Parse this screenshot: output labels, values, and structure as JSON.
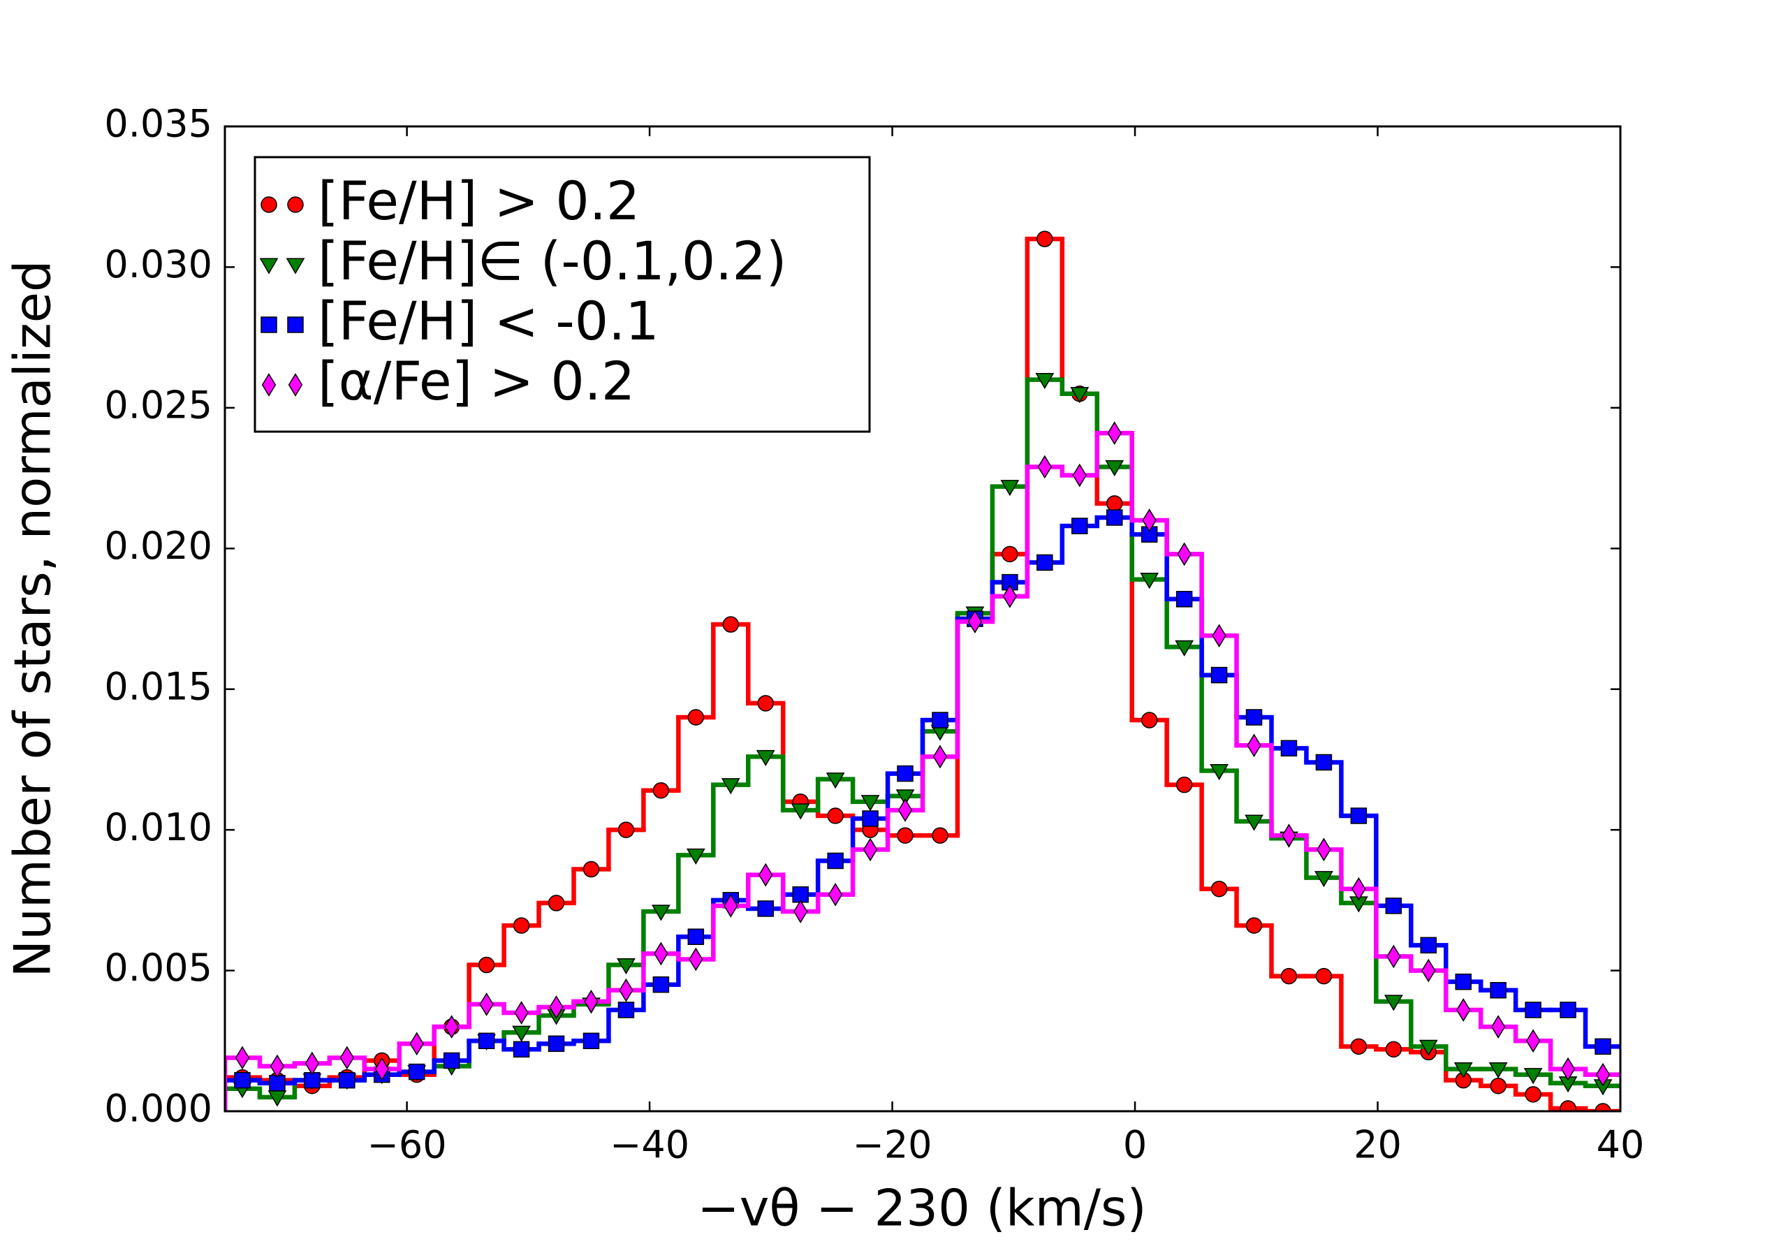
{
  "chart_data": {
    "type": "histogram",
    "xlabel": "−vθ − 230 (km/s)",
    "ylabel": "Number of stars, normalized",
    "bins": [
      -75,
      -72.125,
      -69.25,
      -66.375,
      -63.5,
      -60.625,
      -57.75,
      -54.875,
      -52,
      -49.125,
      -46.25,
      -43.375,
      -40.5,
      -37.625,
      -34.75,
      -31.875,
      -29,
      -26.125,
      -23.25,
      -20.375,
      -17.5,
      -14.625,
      -11.75,
      -8.875,
      -6,
      -3.125,
      -0.25,
      2.625,
      5.5,
      8.375,
      11.25,
      14.125,
      17,
      19.875,
      22.75,
      25.625,
      28.5,
      31.375,
      34.25,
      37.125,
      40
    ],
    "series": [
      {
        "name": "[Fe/H] > 0.2",
        "color": "#ff0000",
        "marker": "circle",
        "values": [
          0.0012,
          0.0011,
          0.0009,
          0.0012,
          0.0018,
          0.0013,
          0.003,
          0.0052,
          0.0066,
          0.0074,
          0.0086,
          0.01,
          0.0114,
          0.014,
          0.0173,
          0.0145,
          0.011,
          0.0105,
          0.01,
          0.0098,
          0.0098,
          0.0175,
          0.0198,
          0.031,
          0.0255,
          0.0216,
          0.0139,
          0.0116,
          0.0079,
          0.0066,
          0.0048,
          0.0048,
          0.0023,
          0.0022,
          0.0021,
          0.0011,
          0.0009,
          0.0006,
          0.0001,
          0.0
        ]
      },
      {
        "name": "[Fe/H]∈ (-0.1,0.2)",
        "color": "#008000",
        "marker": "triangle-down",
        "values": [
          0.0008,
          0.0005,
          0.0011,
          0.0011,
          0.0013,
          0.0014,
          0.0016,
          0.0025,
          0.0028,
          0.0034,
          0.0038,
          0.0052,
          0.0071,
          0.0091,
          0.0116,
          0.0126,
          0.0107,
          0.0118,
          0.011,
          0.0112,
          0.0135,
          0.0177,
          0.0222,
          0.026,
          0.0255,
          0.0229,
          0.0189,
          0.0165,
          0.0121,
          0.0103,
          0.0097,
          0.0083,
          0.0074,
          0.0039,
          0.0023,
          0.0015,
          0.0015,
          0.0013,
          0.001,
          0.0009
        ]
      },
      {
        "name": "[Fe/H] < -0.1",
        "color": "#0000ff",
        "marker": "square",
        "values": [
          0.0011,
          0.001,
          0.0011,
          0.0011,
          0.0013,
          0.0014,
          0.0018,
          0.0025,
          0.0022,
          0.0024,
          0.0025,
          0.0036,
          0.0045,
          0.0062,
          0.0075,
          0.0072,
          0.0077,
          0.0089,
          0.0104,
          0.012,
          0.0139,
          0.0175,
          0.0188,
          0.0195,
          0.0208,
          0.0211,
          0.0205,
          0.0182,
          0.0155,
          0.014,
          0.0129,
          0.0124,
          0.0105,
          0.0073,
          0.0059,
          0.0046,
          0.0043,
          0.0036,
          0.0036,
          0.0023
        ]
      },
      {
        "name": "[α/Fe] > 0.2",
        "color": "#ff00ff",
        "marker": "diamond",
        "values": [
          0.0019,
          0.0016,
          0.0017,
          0.0019,
          0.0015,
          0.0024,
          0.003,
          0.0038,
          0.0035,
          0.0037,
          0.0039,
          0.0043,
          0.0056,
          0.0054,
          0.0073,
          0.0084,
          0.0071,
          0.0077,
          0.0093,
          0.0107,
          0.0126,
          0.0174,
          0.0183,
          0.0229,
          0.0226,
          0.0241,
          0.021,
          0.0198,
          0.0169,
          0.013,
          0.0098,
          0.0093,
          0.0079,
          0.0055,
          0.005,
          0.0036,
          0.003,
          0.0025,
          0.0015,
          0.0013
        ]
      }
    ],
    "xlim": [
      -75,
      40
    ],
    "xticks": [
      {
        "value": -60,
        "label": "−60"
      },
      {
        "value": -40,
        "label": "−40"
      },
      {
        "value": -20,
        "label": "−20"
      },
      0,
      20,
      40
    ],
    "ylim": [
      0,
      0.035
    ],
    "yticks": [
      {
        "value": 0,
        "label": "0.000"
      },
      {
        "value": 0.005,
        "label": "0.005"
      },
      {
        "value": 0.01,
        "label": "0.010"
      },
      {
        "value": 0.015,
        "label": "0.015"
      },
      {
        "value": 0.02,
        "label": "0.020"
      },
      {
        "value": 0.025,
        "label": "0.025"
      },
      {
        "value": 0.03,
        "label": "0.030"
      },
      {
        "value": 0.035,
        "label": "0.035"
      }
    ],
    "legend": "upper left",
    "grid": false
  }
}
